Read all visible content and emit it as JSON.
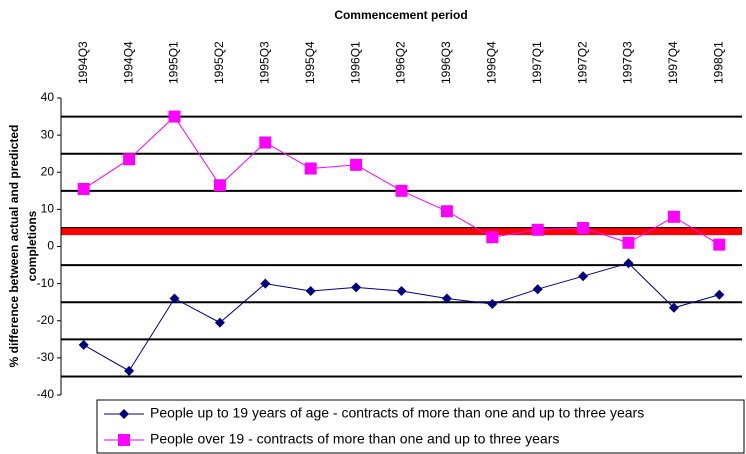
{
  "chart_data": {
    "type": "line",
    "title": "Commencement period",
    "y_label": [
      "% difference between actual and predicted",
      "completions"
    ],
    "categories": [
      "1994Q3",
      "1994Q4",
      "1995Q1",
      "1995Q2",
      "1995Q3",
      "1995Q4",
      "1996Q1",
      "1996Q2",
      "1996Q3",
      "1996Q4",
      "1997Q1",
      "1997Q2",
      "1997Q3",
      "1997Q4",
      "1998Q1"
    ],
    "series": [
      {
        "name": "People up to 19 years of age - contracts of more than one and up to three years",
        "color": "#000080",
        "marker": "diamond",
        "values": [
          -26.5,
          -33.5,
          -14,
          -20.5,
          -10,
          -12,
          -11,
          -12,
          -14,
          -15.5,
          -11.5,
          -8,
          -4.5,
          -16.5,
          -13
        ]
      },
      {
        "name": "People over 19 - contracts of more than one and up to three years",
        "color": "#ff00ff",
        "marker": "square",
        "values": [
          15.5,
          23.5,
          35,
          16.5,
          28,
          21,
          22,
          15,
          9.5,
          2.5,
          4.5,
          5,
          1,
          8,
          0.5
        ]
      }
    ],
    "ylim": [
      -40,
      40
    ],
    "yticks": [
      -40,
      -30,
      -20,
      -10,
      0,
      10,
      20,
      30,
      40
    ],
    "grid_lines": [
      35,
      25,
      15,
      5,
      -5,
      -15,
      -25,
      -35
    ],
    "reference_line": {
      "value": 4,
      "color": "#ff0000"
    }
  }
}
